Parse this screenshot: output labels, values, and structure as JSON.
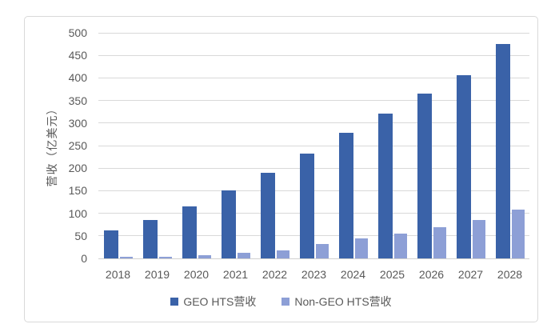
{
  "chart_data": {
    "type": "bar",
    "title": "",
    "categories": [
      "2018",
      "2019",
      "2020",
      "2021",
      "2022",
      "2023",
      "2024",
      "2025",
      "2026",
      "2027",
      "2028"
    ],
    "series": [
      {
        "name": "GEO HTS营收",
        "color": "#3a62a8",
        "values": [
          62,
          85,
          116,
          151,
          189,
          232,
          278,
          321,
          365,
          406,
          475
        ]
      },
      {
        "name": "Non-GEO HTS营收",
        "color": "#8d9fd6",
        "values": [
          3,
          4,
          7,
          12,
          18,
          32,
          44,
          55,
          70,
          85,
          109
        ]
      }
    ],
    "xlabel": "",
    "ylabel": "营收（亿美元）",
    "ylim": [
      0,
      500
    ],
    "ytick_step": 50,
    "grid": "horizontal",
    "legend_position": "bottom",
    "colors": {
      "grid": "#d9d9d9",
      "axis_text": "#595959",
      "frame_border": "#d9d9d9",
      "background": "#ffffff"
    }
  }
}
